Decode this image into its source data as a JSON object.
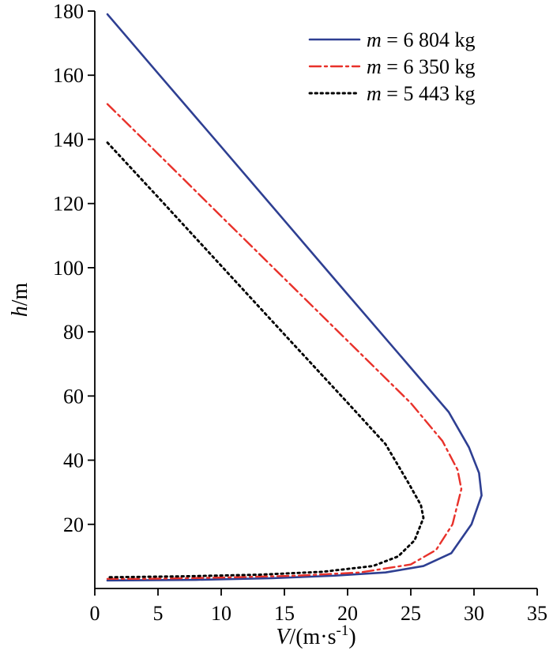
{
  "figure": {
    "background": "#ffffff"
  },
  "chart_data": {
    "type": "line",
    "title": "",
    "xlabel": {
      "variable": "V",
      "rest": "/(m·s",
      "superscript": "-1",
      "close": ")"
    },
    "ylabel": {
      "variable": "h",
      "rest": "/m"
    },
    "xlim": [
      0,
      35
    ],
    "ylim": [
      0,
      180
    ],
    "x_ticks": [
      0,
      5,
      10,
      15,
      20,
      25,
      30,
      35
    ],
    "y_ticks": [
      20,
      40,
      60,
      80,
      100,
      120,
      140,
      160,
      180
    ],
    "grid": false,
    "legend_position": "top-right",
    "axis_color": "#000000",
    "series": [
      {
        "name_variable": "m",
        "name_rest": " = 6 804 kg",
        "color": "#2e3f92",
        "line_style": "solid",
        "points": [
          [
            1,
            179
          ],
          [
            5,
            160.6
          ],
          [
            10,
            137.7
          ],
          [
            15,
            114.7
          ],
          [
            20,
            91.7
          ],
          [
            25,
            68.8
          ],
          [
            28,
            55
          ],
          [
            29.6,
            44
          ],
          [
            30.4,
            36
          ],
          [
            30.6,
            29
          ],
          [
            29.8,
            20
          ],
          [
            28.2,
            11
          ],
          [
            26,
            7
          ],
          [
            23,
            5
          ],
          [
            19,
            4
          ],
          [
            14,
            3.2
          ],
          [
            8,
            2.7
          ],
          [
            1,
            2.5
          ]
        ]
      },
      {
        "name_variable": "m",
        "name_rest": " = 6 350 kg",
        "color": "#e8312a",
        "line_style": "dashdot",
        "points": [
          [
            1,
            151
          ],
          [
            5,
            135.5
          ],
          [
            10,
            116
          ],
          [
            15,
            96.6
          ],
          [
            20,
            77.2
          ],
          [
            25,
            57.8
          ],
          [
            27.5,
            46
          ],
          [
            28.7,
            37
          ],
          [
            29,
            31
          ],
          [
            28.3,
            20
          ],
          [
            27,
            12
          ],
          [
            25,
            7.5
          ],
          [
            21,
            5
          ],
          [
            16,
            4
          ],
          [
            10,
            3.4
          ],
          [
            4,
            3
          ],
          [
            1,
            3
          ]
        ]
      },
      {
        "name_variable": "m",
        "name_rest": " = 5 443 kg",
        "color": "#000000",
        "line_style": "dotted",
        "points": [
          [
            1,
            139
          ],
          [
            5,
            122
          ],
          [
            10,
            100.6
          ],
          [
            15,
            79.2
          ],
          [
            20,
            57.9
          ],
          [
            23,
            45
          ],
          [
            24.8,
            33
          ],
          [
            25.8,
            26
          ],
          [
            26,
            22
          ],
          [
            25.3,
            15
          ],
          [
            24,
            10
          ],
          [
            22,
            7
          ],
          [
            18,
            5.2
          ],
          [
            13,
            4.3
          ],
          [
            7,
            3.8
          ],
          [
            1,
            3.5
          ]
        ]
      }
    ]
  }
}
